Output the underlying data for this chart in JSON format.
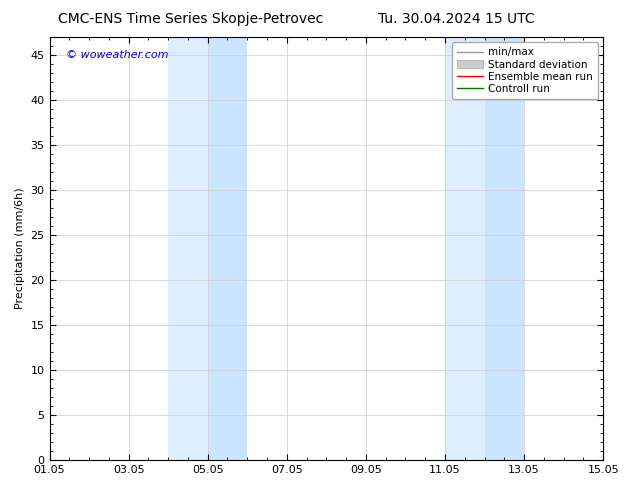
{
  "title_left": "CMC-ENS Time Series Skopje-Petrovec",
  "title_right": "Tu. 30.04.2024 15 UTC",
  "ylabel": "Precipitation (mm/6h)",
  "watermark": "© woweather.com",
  "watermark_color": "#0000cc",
  "xlim_start": 0,
  "xlim_end": 14,
  "ylim": [
    0,
    47
  ],
  "yticks": [
    0,
    5,
    10,
    15,
    20,
    25,
    30,
    35,
    40,
    45
  ],
  "xtick_labels": [
    "01.05",
    "03.05",
    "05.05",
    "07.05",
    "09.05",
    "11.05",
    "13.05",
    "15.05"
  ],
  "xtick_positions": [
    0,
    2,
    4,
    6,
    8,
    10,
    12,
    14
  ],
  "shaded_regions": [
    {
      "xmin": 3.0,
      "xmax": 4.0,
      "color": "#ddeeff"
    },
    {
      "xmin": 4.0,
      "xmax": 5.0,
      "color": "#cce5ff"
    },
    {
      "xmin": 10.0,
      "xmax": 11.0,
      "color": "#ddeeff"
    },
    {
      "xmin": 11.0,
      "xmax": 12.0,
      "color": "#cce5ff"
    }
  ],
  "legend_entries": [
    {
      "label": "min/max",
      "color": "#999999",
      "linestyle": "-",
      "linewidth": 1.0
    },
    {
      "label": "Standard deviation",
      "color": "#cccccc",
      "linestyle": "-",
      "linewidth": 5
    },
    {
      "label": "Ensemble mean run",
      "color": "#ff0000",
      "linestyle": "-",
      "linewidth": 1.0
    },
    {
      "label": "Controll run",
      "color": "#007700",
      "linestyle": "-",
      "linewidth": 1.0
    }
  ],
  "bg_color": "#ffffff",
  "plot_bg_color": "#ffffff",
  "grid_color": "#cccccc",
  "title_fontsize": 10,
  "label_fontsize": 8,
  "tick_fontsize": 8,
  "legend_fontsize": 7.5,
  "watermark_fontsize": 8
}
